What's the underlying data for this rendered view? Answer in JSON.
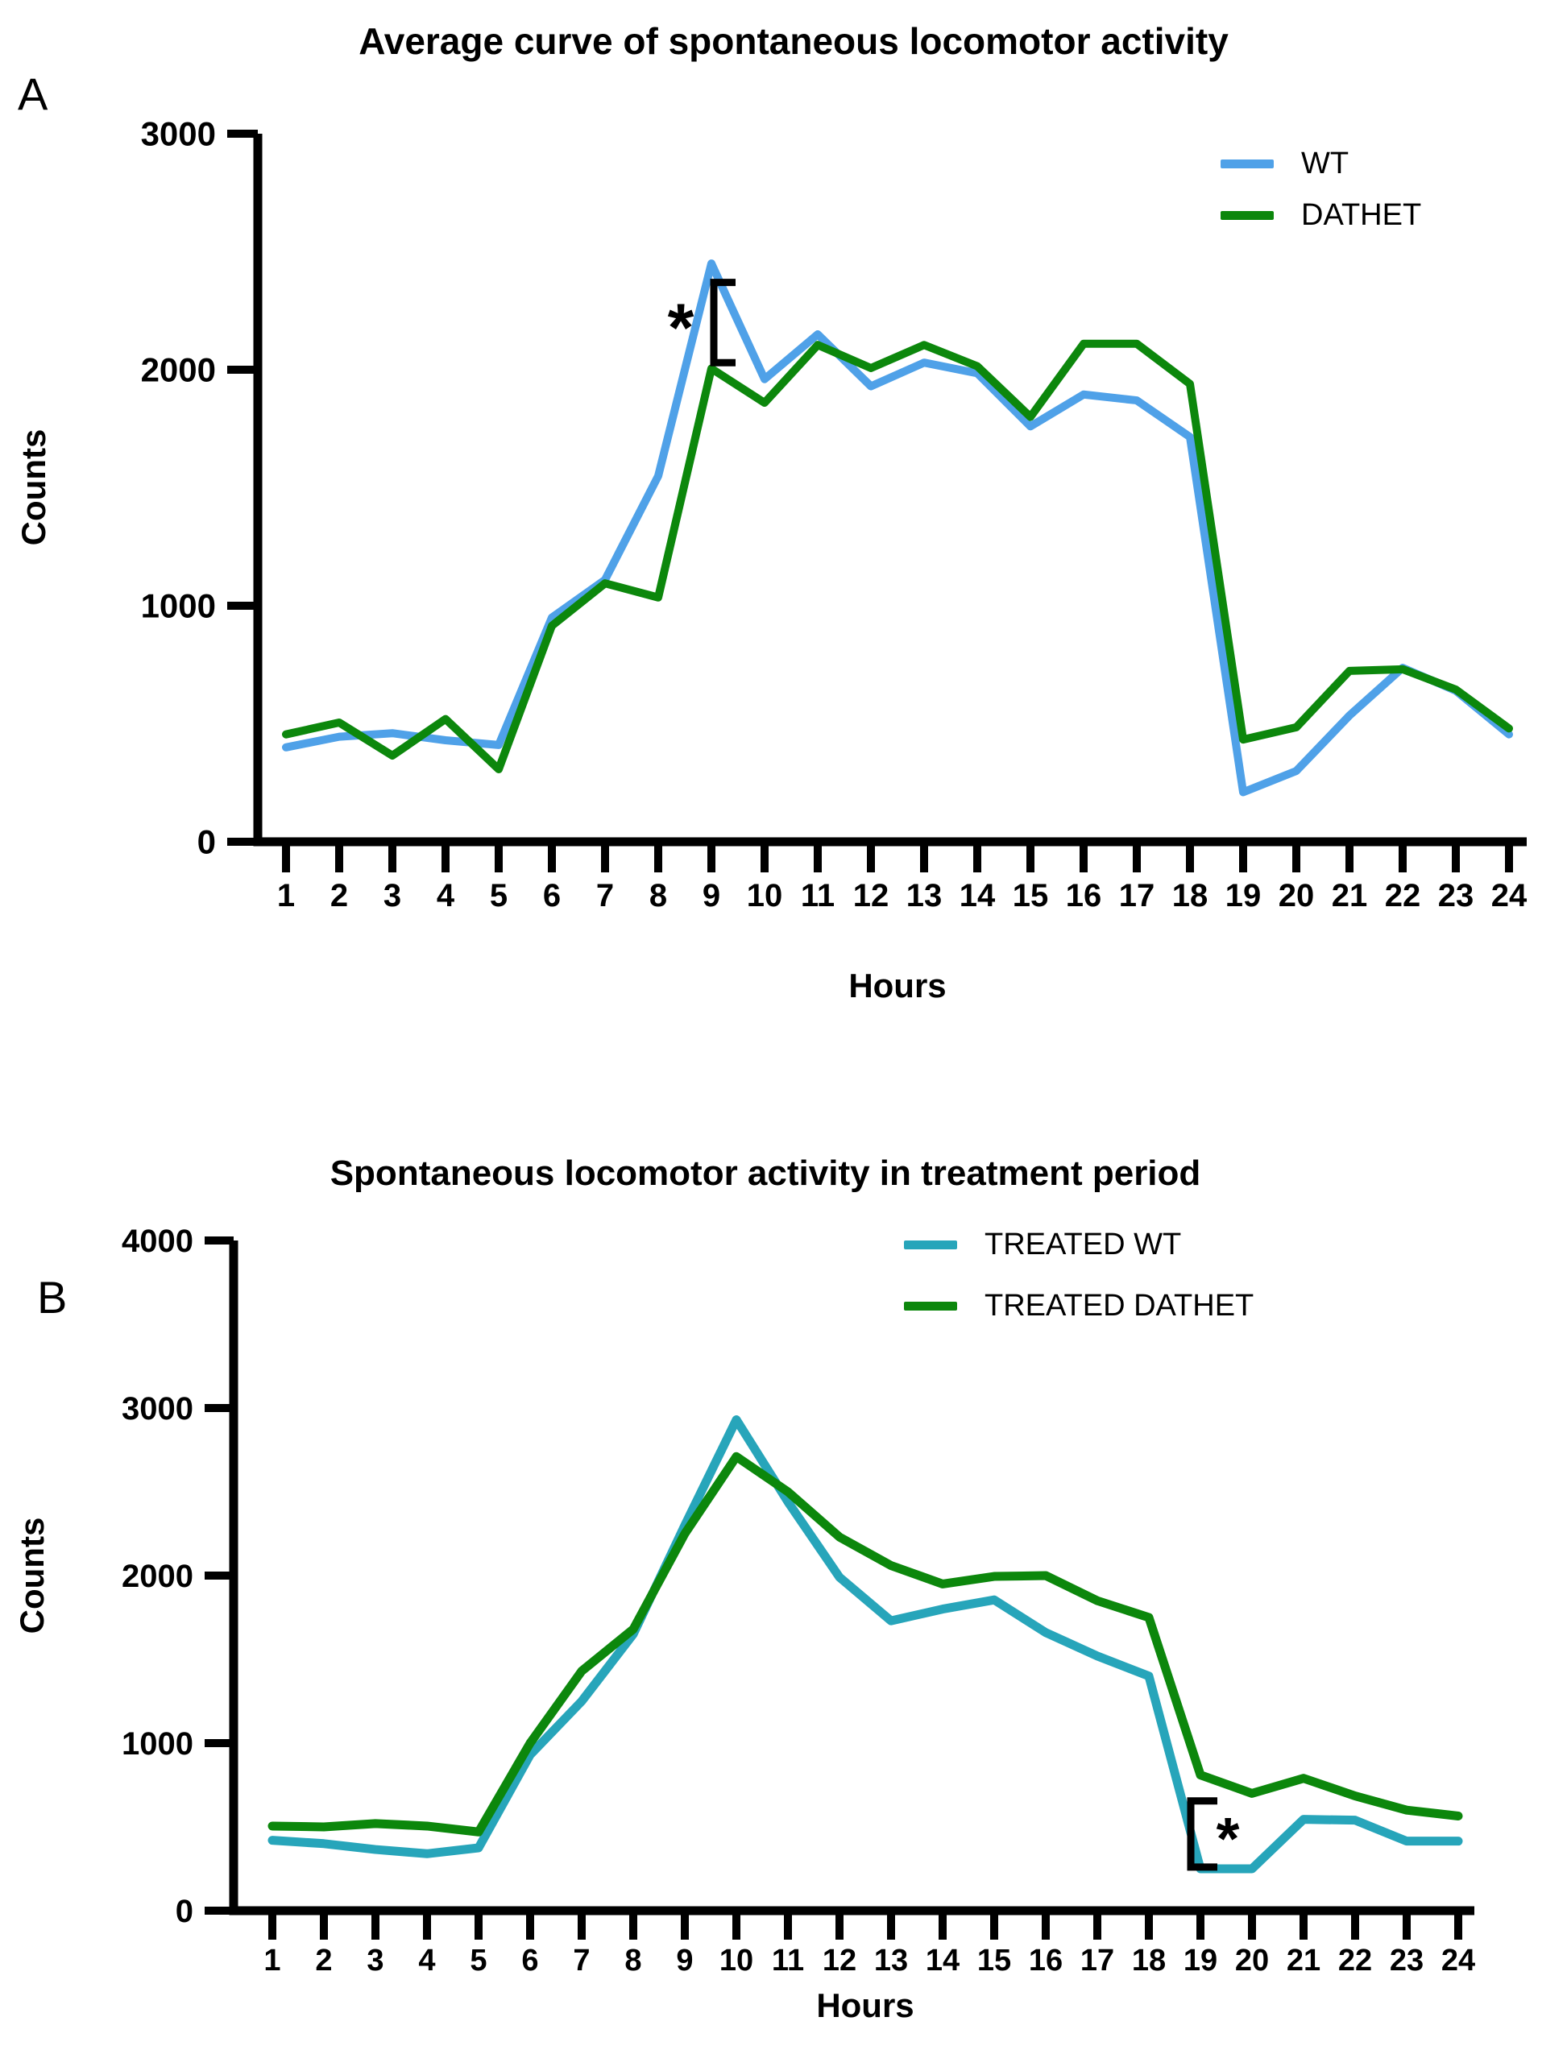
{
  "figure": {
    "background": "#ffffff",
    "axis_color": "#000000"
  },
  "chart_data": [
    {
      "id": "panel_a",
      "type": "line",
      "panel_label": "A",
      "title": "Average curve of spontaneous locomotor activity",
      "xlabel": "Hours",
      "ylabel": "Counts",
      "x": [
        1,
        2,
        3,
        4,
        5,
        6,
        7,
        8,
        9,
        10,
        11,
        12,
        13,
        14,
        15,
        16,
        17,
        18,
        19,
        20,
        21,
        22,
        23,
        24
      ],
      "xlim": [
        1,
        24
      ],
      "ylim": [
        0,
        3000
      ],
      "yticks": [
        0,
        1000,
        2000,
        3000
      ],
      "grid": false,
      "legend_position": "top-right",
      "series": [
        {
          "name": "WT",
          "color": "#4FA1E8",
          "values": [
            400,
            445,
            460,
            430,
            410,
            950,
            1110,
            1550,
            2450,
            1960,
            2150,
            1930,
            2030,
            1985,
            1760,
            1895,
            1870,
            1715,
            210,
            300,
            535,
            737,
            640,
            455
          ]
        },
        {
          "name": "DATHET",
          "color": "#0C870C",
          "values": [
            455,
            505,
            365,
            520,
            307,
            915,
            1095,
            1035,
            2005,
            1860,
            2105,
            2007,
            2105,
            2015,
            1800,
            2110,
            2110,
            1940,
            433,
            485,
            724,
            731,
            645,
            480
          ]
        }
      ],
      "annotation": {
        "type": "significance-bracket",
        "symbol": "*",
        "at_hour": 9,
        "between": [
          "WT",
          "DATHET"
        ],
        "bracket_value_range": [
          2030,
          2370
        ],
        "symbol_side": "left"
      }
    },
    {
      "id": "panel_b",
      "type": "line",
      "panel_label": "B",
      "title": "Spontaneous locomotor activity in treatment period",
      "xlabel": "Hours",
      "ylabel": "Counts",
      "x": [
        1,
        2,
        3,
        4,
        5,
        6,
        7,
        8,
        9,
        10,
        11,
        12,
        13,
        14,
        15,
        16,
        17,
        18,
        19,
        20,
        21,
        22,
        23,
        24
      ],
      "xlim": [
        1,
        24
      ],
      "ylim": [
        0,
        4000
      ],
      "yticks": [
        0,
        1000,
        2000,
        3000,
        4000
      ],
      "grid": false,
      "legend_position": "top-right",
      "series": [
        {
          "name": "TREATED WT",
          "color": "#27A5BA",
          "values": [
            420,
            400,
            365,
            340,
            375,
            930,
            1250,
            1650,
            2300,
            2930,
            2440,
            1990,
            1730,
            1800,
            1855,
            1660,
            1520,
            1400,
            250,
            250,
            545,
            540,
            415,
            415
          ]
        },
        {
          "name": "TREATED DATHET",
          "color": "#0C870C",
          "values": [
            505,
            500,
            520,
            505,
            470,
            1000,
            1430,
            1680,
            2250,
            2710,
            2500,
            2230,
            2060,
            1950,
            1995,
            2000,
            1850,
            1750,
            810,
            700,
            790,
            685,
            600,
            565
          ]
        }
      ],
      "annotation": {
        "type": "significance-bracket",
        "symbol": "*",
        "at_hour": 19,
        "between": [
          "TREATED WT",
          "TREATED DATHET"
        ],
        "bracket_value_range": [
          260,
          655
        ],
        "symbol_side": "right-inside"
      }
    }
  ]
}
